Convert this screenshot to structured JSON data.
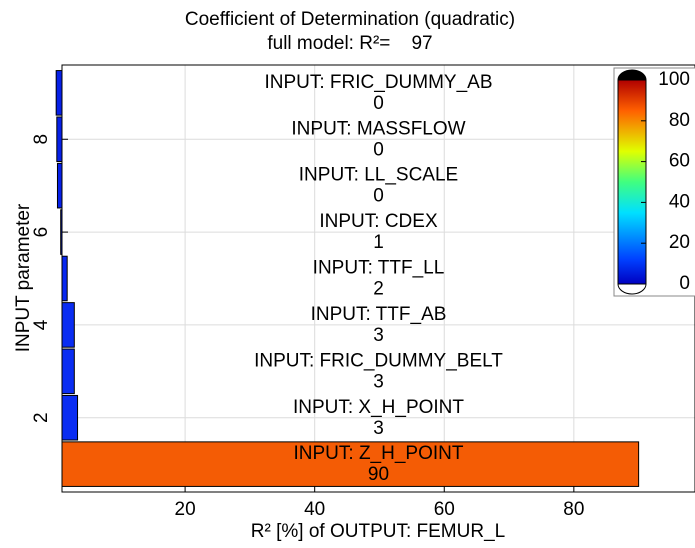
{
  "chart_data": {
    "type": "hbar",
    "title": "Coefficient of Determination (quadratic)",
    "subtitle": "full model: R²=    97",
    "x_label": "R² [%] of OUTPUT: FEMUR_L",
    "y_label": "INPUT parameter",
    "categories": [
      "INPUT: Z_H_POINT",
      "INPUT: X_H_POINT",
      "INPUT: FRIC_DUMMY_BELT",
      "INPUT: TTF_AB",
      "INPUT: TTF_LL",
      "INPUT: CDEX",
      "INPUT: LL_SCALE",
      "INPUT: MASSFLOW",
      "INPUT: FRIC_DUMMY_AB"
    ],
    "positions": [
      1,
      2,
      3,
      4,
      5,
      6,
      7,
      8,
      9
    ],
    "values": [
      90,
      3.4,
      2.9,
      2.9,
      1.8,
      0.8,
      0.3,
      0.2,
      0.1
    ],
    "value_labels": [
      "90",
      "3",
      "3",
      "3",
      "2",
      "1",
      "0",
      "0",
      "0"
    ],
    "colors": [
      "#f45c05",
      "#0a2df2",
      "#0a2df2",
      "#0a2df2",
      "#0828f0",
      "#0725ee",
      "#0620e8",
      "#0620e8",
      "#0620e8"
    ],
    "xlim": [
      1,
      98.7
    ],
    "xticks": [
      20,
      40,
      60,
      80
    ],
    "ylim": [
      0.4,
      9.6
    ],
    "yticks": [
      2,
      4,
      6,
      8
    ],
    "grid": true,
    "colorbar": {
      "clim": [
        0,
        100
      ],
      "cticks": [
        0,
        20,
        40,
        60,
        80,
        100
      ]
    }
  }
}
